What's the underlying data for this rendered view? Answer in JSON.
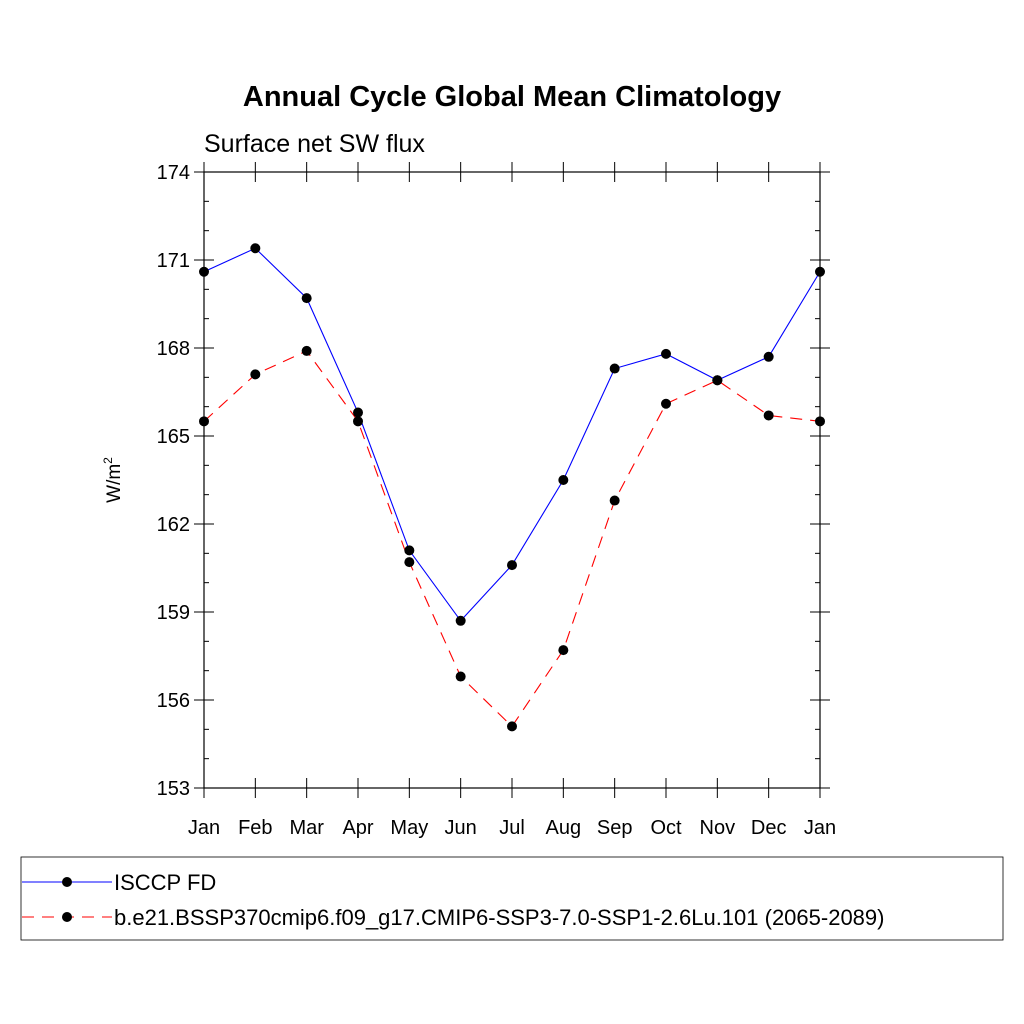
{
  "chart_data": {
    "type": "line",
    "title": "Annual Cycle Global Mean Climatology",
    "subtitle": "Surface net SW flux",
    "ylabel_base": "W/m",
    "ylabel_sup": "2",
    "xlabel": "",
    "categories": [
      "Jan",
      "Feb",
      "Mar",
      "Apr",
      "May",
      "Jun",
      "Jul",
      "Aug",
      "Sep",
      "Oct",
      "Nov",
      "Dec",
      "Jan"
    ],
    "ylim": [
      153,
      174
    ],
    "yticks": [
      153,
      156,
      159,
      162,
      165,
      168,
      171,
      174
    ],
    "grid": false,
    "legend_position": "bottom",
    "series": [
      {
        "name": "ISCCP FD",
        "color": "#0000ff",
        "dash": "solid",
        "values": [
          170.6,
          171.4,
          169.7,
          165.8,
          161.1,
          158.7,
          160.6,
          163.5,
          167.3,
          167.8,
          166.9,
          167.7,
          170.6
        ]
      },
      {
        "name": "b.e21.BSSP370cmip6.f09_g17.CMIP6-SSP3-7.0-SSP1-2.6Lu.101 (2065-2089)",
        "color": "#ff0000",
        "dash": "dashed",
        "values": [
          165.5,
          167.1,
          167.9,
          165.5,
          160.7,
          156.8,
          155.1,
          157.7,
          162.8,
          166.1,
          166.9,
          165.7,
          165.5
        ]
      }
    ]
  }
}
